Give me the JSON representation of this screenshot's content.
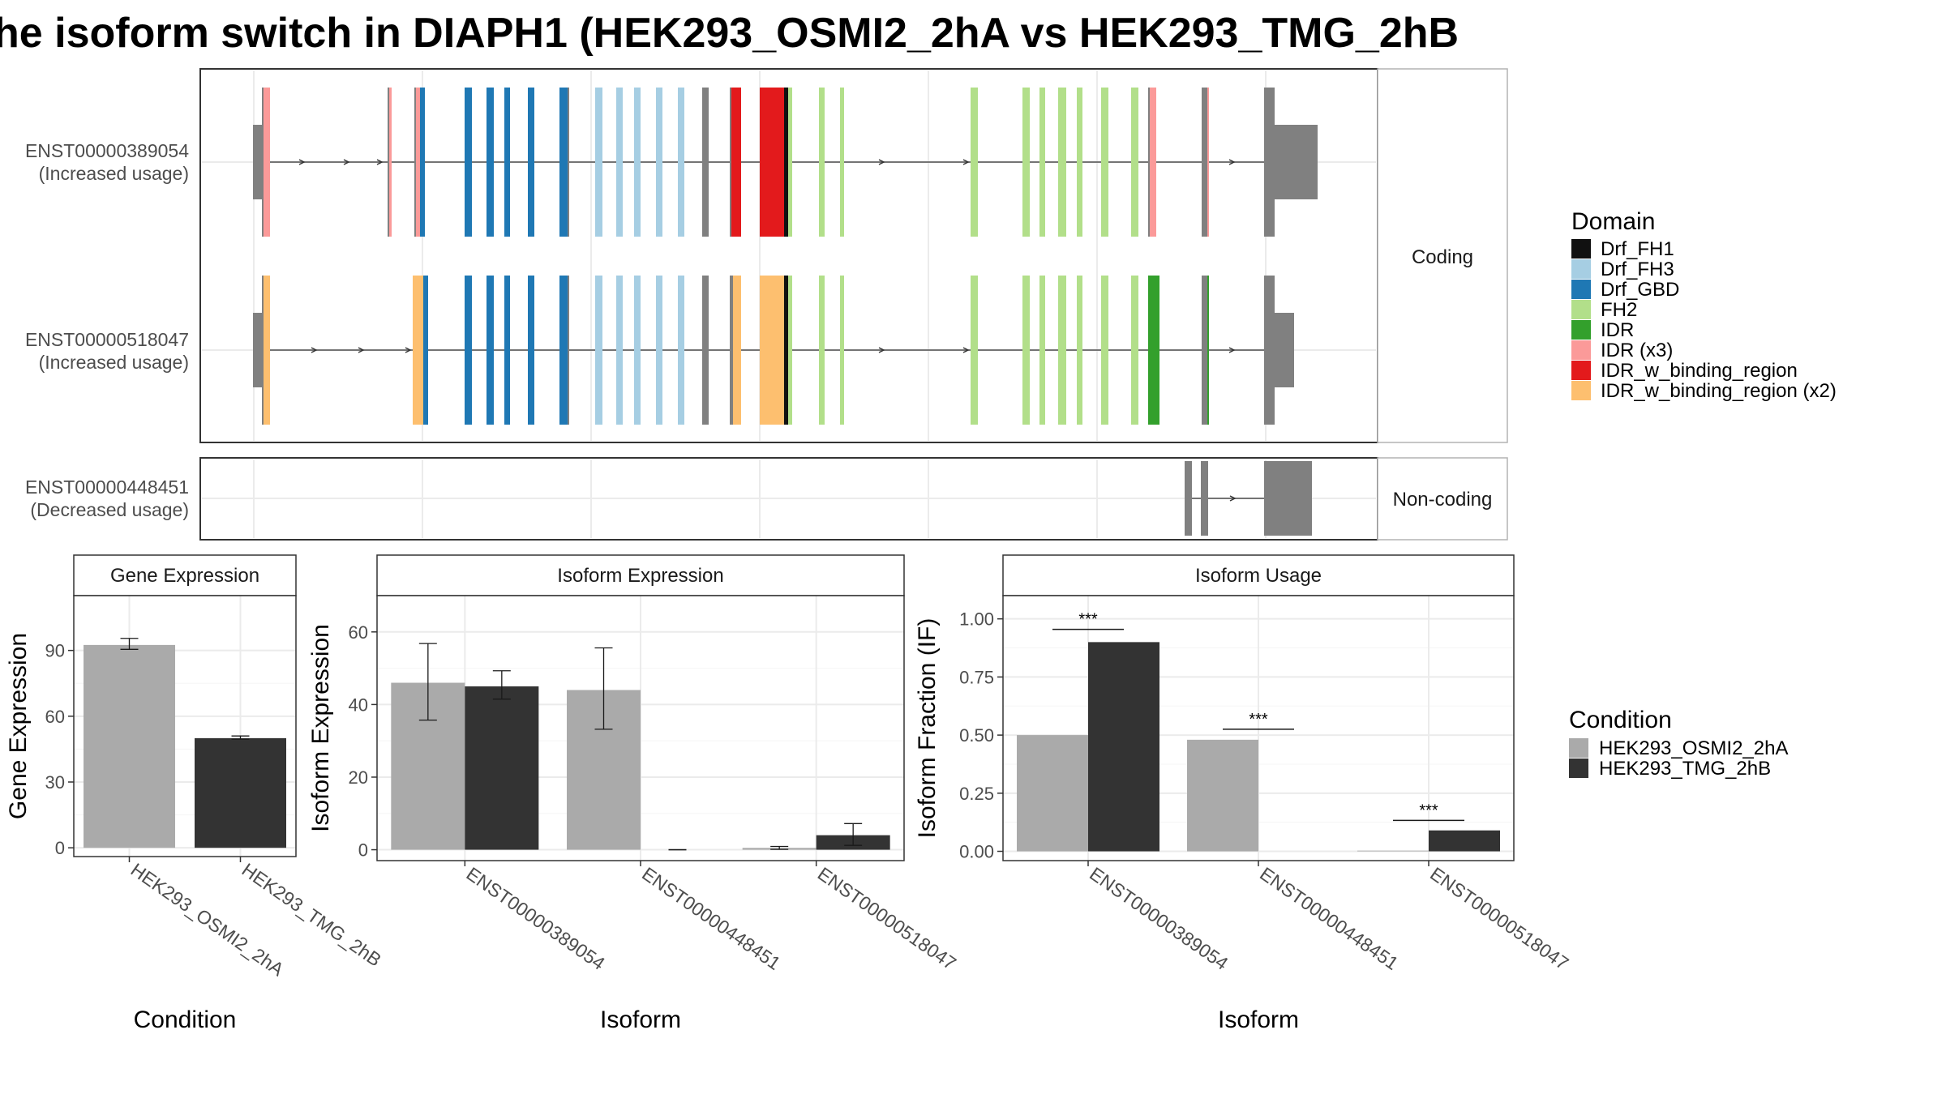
{
  "title": "he isoform switch in DIAPH1 (HEK293_OSMI2_2hA vs HEK293_TMG_2hB",
  "colors": {
    "Drf_FH1": "#111111",
    "Drf_FH3": "#a6cee3",
    "Drf_GBD": "#1f78b4",
    "FH2": "#b2df8a",
    "IDR": "#33a02c",
    "IDR (x3)": "#fb9a99",
    "IDR_w_binding_region": "#e31a1c",
    "IDR_w_binding_region (x2)": "#fdbf6f",
    "intron_exon_gray": "#808080",
    "cond1": "#aaaaaa",
    "cond2": "#333333"
  },
  "structure": {
    "coding_strip_label": "Coding",
    "noncoding_strip_label": "Non-coding",
    "transcripts": [
      {
        "id": "ENST00000389054",
        "note": "(Increased usage)"
      },
      {
        "id": "ENST00000518047",
        "note": "(Increased usage)"
      },
      {
        "id": "ENST00000448451",
        "note": "(Decreased usage)"
      }
    ]
  },
  "legend_domain": {
    "title": "Domain",
    "entries": [
      "Drf_FH1",
      "Drf_FH3",
      "Drf_GBD",
      "FH2",
      "IDR",
      "IDR (x3)",
      "IDR_w_binding_region",
      "IDR_w_binding_region (x2)"
    ]
  },
  "legend_condition": {
    "title": "Condition",
    "entries": [
      "HEK293_OSMI2_2hA",
      "HEK293_TMG_2hB"
    ]
  },
  "chart_data": [
    {
      "type": "bar",
      "title": "Gene Expression",
      "xlabel": "Condition",
      "ylabel": "Gene Expression",
      "categories": [
        "HEK293_OSMI2_2hA",
        "HEK293_TMG_2hB"
      ],
      "values": [
        92.5,
        50
      ],
      "errors": [
        [
          90.5,
          95.5
        ],
        [
          49.5,
          51
        ]
      ],
      "ylim": [
        -4,
        115
      ],
      "yticks": [
        0,
        30,
        60,
        90
      ]
    },
    {
      "type": "bar",
      "title": "Isoform Expression",
      "xlabel": "Isoform",
      "ylabel": "Isoform Expression",
      "categories": [
        "ENST00000389054",
        "ENST00000448451",
        "ENST00000518047"
      ],
      "series": [
        {
          "name": "HEK293_OSMI2_2hA",
          "values": [
            46,
            44,
            0.5
          ],
          "errors": [
            [
              35.7,
              56.8
            ],
            [
              33.2,
              55.6
            ],
            [
              0.1,
              0.9
            ]
          ]
        },
        {
          "name": "HEK293_TMG_2hB",
          "values": [
            45,
            0,
            4
          ],
          "errors": [
            [
              41.5,
              49.3
            ],
            [
              0,
              0
            ],
            [
              1.2,
              7.2
            ]
          ]
        }
      ],
      "ylim": [
        -3,
        70
      ],
      "yticks": [
        0,
        20,
        40,
        60
      ]
    },
    {
      "type": "bar",
      "title": "Isoform Usage",
      "xlabel": "Isoform",
      "ylabel": "Isoform Fraction (IF)",
      "categories": [
        "ENST00000389054",
        "ENST00000448451",
        "ENST00000518047"
      ],
      "series": [
        {
          "name": "HEK293_OSMI2_2hA",
          "values": [
            0.5,
            0.48,
            0.003
          ]
        },
        {
          "name": "HEK293_TMG_2hB",
          "values": [
            0.9,
            0,
            0.09
          ]
        }
      ],
      "significance": [
        {
          "label": "***",
          "y": 0.955
        },
        {
          "label": "***",
          "y": 0.525
        },
        {
          "label": "***",
          "y": 0.133
        }
      ],
      "ylim": [
        -0.04,
        1.1
      ],
      "yticks": [
        "0.00",
        "0.25",
        "0.50",
        "0.75",
        "1.00"
      ]
    }
  ]
}
